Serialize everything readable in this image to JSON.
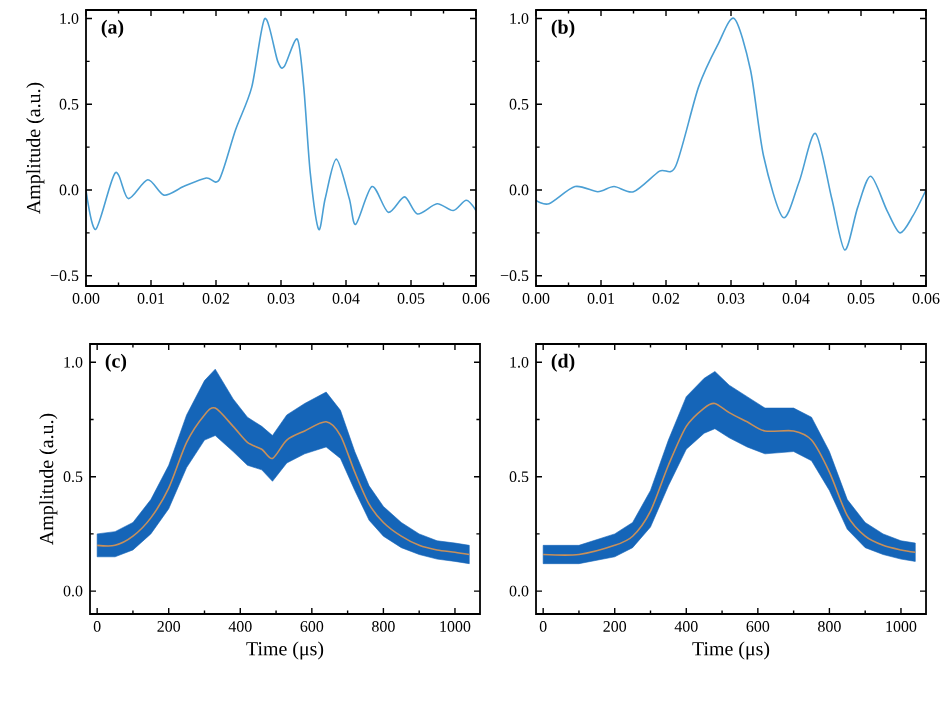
{
  "chart_data": [
    {
      "type": "line",
      "ylabel": "Amplitude (a.u.)",
      "annotations": [
        "(a)"
      ],
      "xlim": [
        0,
        0.06
      ],
      "ylim": [
        -0.56,
        1.05
      ],
      "xticks": [
        {
          "value": 0,
          "label": "0.00"
        },
        {
          "value": 0.01,
          "label": "0.01"
        },
        {
          "value": 0.02,
          "label": "0.02"
        },
        {
          "value": 0.03,
          "label": "0.03"
        },
        {
          "value": 0.04,
          "label": "0.04"
        },
        {
          "value": 0.05,
          "label": "0.05"
        },
        {
          "value": 0.06,
          "label": "0.06"
        }
      ],
      "yticks": [
        {
          "value": -0.5,
          "label": "−0.5"
        },
        {
          "value": 0,
          "label": "0.0"
        },
        {
          "value": 0.5,
          "label": "0.5"
        },
        {
          "value": 1,
          "label": "1.0"
        }
      ],
      "series": [
        {
          "color": "#4a9fd4",
          "x": [
            0,
            0.0015,
            0.0045,
            0.0065,
            0.0095,
            0.012,
            0.015,
            0.0185,
            0.0205,
            0.023,
            0.0255,
            0.0275,
            0.0295,
            0.0305,
            0.0325,
            0.0335,
            0.0345,
            0.0358,
            0.0368,
            0.0385,
            0.0405,
            0.0415,
            0.044,
            0.0465,
            0.049,
            0.051,
            0.054,
            0.0565,
            0.0585,
            0.06
          ],
          "values": [
            0,
            -0.23,
            0.1,
            -0.05,
            0.06,
            -0.03,
            0.02,
            0.07,
            0.06,
            0.35,
            0.6,
            1.0,
            0.75,
            0.72,
            0.88,
            0.6,
            0.1,
            -0.23,
            -0.05,
            0.18,
            -0.05,
            -0.2,
            0.02,
            -0.13,
            -0.04,
            -0.14,
            -0.08,
            -0.12,
            -0.06,
            -0.12
          ]
        }
      ]
    },
    {
      "type": "line",
      "annotations": [
        "(b)"
      ],
      "xlim": [
        0,
        0.06
      ],
      "ylim": [
        -0.56,
        1.05
      ],
      "xticks": [
        {
          "value": 0,
          "label": "0.00"
        },
        {
          "value": 0.01,
          "label": "0.01"
        },
        {
          "value": 0.02,
          "label": "0.02"
        },
        {
          "value": 0.03,
          "label": "0.03"
        },
        {
          "value": 0.04,
          "label": "0.04"
        },
        {
          "value": 0.05,
          "label": "0.05"
        },
        {
          "value": 0.06,
          "label": "0.06"
        }
      ],
      "yticks": [
        {
          "value": -0.5,
          "label": "−0.5"
        },
        {
          "value": 0,
          "label": "0.0"
        },
        {
          "value": 0.5,
          "label": "0.5"
        },
        {
          "value": 1,
          "label": "1.0"
        }
      ],
      "series": [
        {
          "color": "#4a9fd4",
          "x": [
            0,
            0.002,
            0.006,
            0.0095,
            0.012,
            0.015,
            0.019,
            0.0215,
            0.025,
            0.028,
            0.0305,
            0.033,
            0.035,
            0.038,
            0.0405,
            0.043,
            0.0455,
            0.0475,
            0.0495,
            0.0515,
            0.054,
            0.056,
            0.058,
            0.06
          ],
          "values": [
            -0.06,
            -0.08,
            0.02,
            -0.01,
            0.02,
            -0.01,
            0.11,
            0.14,
            0.6,
            0.85,
            1.0,
            0.7,
            0.2,
            -0.16,
            0.05,
            0.33,
            -0.05,
            -0.35,
            -0.1,
            0.08,
            -0.12,
            -0.25,
            -0.15,
            0
          ]
        }
      ]
    },
    {
      "type": "line",
      "xlabel": "Time (μs)",
      "ylabel": "Amplitude (a.u.)",
      "annotations": [
        "(c)"
      ],
      "xlim": [
        -20,
        1070
      ],
      "ylim": [
        -0.1,
        1.08
      ],
      "xticks": [
        0,
        200,
        400,
        600,
        800,
        1000
      ],
      "yticks": [
        {
          "value": 0,
          "label": "0.0"
        },
        {
          "value": 0.5,
          "label": "0.5"
        },
        {
          "value": 1,
          "label": "1.0"
        }
      ],
      "series": [
        {
          "color": "#c8905a",
          "x": [
            0,
            50,
            100,
            150,
            200,
            250,
            300,
            330,
            380,
            420,
            460,
            490,
            530,
            580,
            640,
            680,
            720,
            760,
            800,
            850,
            900,
            950,
            1000,
            1040
          ],
          "values": [
            0.2,
            0.2,
            0.24,
            0.32,
            0.45,
            0.65,
            0.77,
            0.8,
            0.72,
            0.65,
            0.62,
            0.58,
            0.66,
            0.7,
            0.74,
            0.68,
            0.52,
            0.38,
            0.3,
            0.24,
            0.2,
            0.18,
            0.17,
            0.16
          ],
          "lower": [
            0.15,
            0.15,
            0.18,
            0.25,
            0.36,
            0.54,
            0.66,
            0.68,
            0.61,
            0.55,
            0.53,
            0.48,
            0.56,
            0.6,
            0.63,
            0.58,
            0.44,
            0.31,
            0.24,
            0.19,
            0.16,
            0.14,
            0.13,
            0.12
          ],
          "upper": [
            0.25,
            0.26,
            0.3,
            0.4,
            0.55,
            0.77,
            0.92,
            0.97,
            0.84,
            0.76,
            0.72,
            0.68,
            0.77,
            0.82,
            0.87,
            0.79,
            0.61,
            0.46,
            0.37,
            0.3,
            0.25,
            0.22,
            0.21,
            0.2
          ]
        }
      ]
    },
    {
      "type": "line",
      "xlabel": "Time (μs)",
      "annotations": [
        "(d)"
      ],
      "xlim": [
        -20,
        1070
      ],
      "ylim": [
        -0.1,
        1.08
      ],
      "xticks": [
        0,
        200,
        400,
        600,
        800,
        1000
      ],
      "yticks": [
        {
          "value": 0,
          "label": "0.0"
        },
        {
          "value": 0.5,
          "label": "0.5"
        },
        {
          "value": 1,
          "label": "1.0"
        }
      ],
      "series": [
        {
          "color": "#c8905a",
          "x": [
            0,
            100,
            200,
            250,
            300,
            350,
            400,
            450,
            480,
            520,
            570,
            620,
            700,
            750,
            800,
            850,
            900,
            950,
            1000,
            1040
          ],
          "values": [
            0.16,
            0.16,
            0.2,
            0.24,
            0.35,
            0.55,
            0.72,
            0.8,
            0.82,
            0.78,
            0.74,
            0.7,
            0.7,
            0.66,
            0.52,
            0.33,
            0.24,
            0.2,
            0.18,
            0.17
          ],
          "lower": [
            0.12,
            0.12,
            0.15,
            0.19,
            0.28,
            0.46,
            0.62,
            0.69,
            0.71,
            0.67,
            0.63,
            0.6,
            0.61,
            0.57,
            0.44,
            0.27,
            0.19,
            0.16,
            0.14,
            0.13
          ],
          "upper": [
            0.2,
            0.2,
            0.25,
            0.3,
            0.44,
            0.66,
            0.85,
            0.93,
            0.96,
            0.9,
            0.85,
            0.8,
            0.8,
            0.76,
            0.61,
            0.4,
            0.3,
            0.25,
            0.22,
            0.21
          ]
        }
      ]
    }
  ]
}
